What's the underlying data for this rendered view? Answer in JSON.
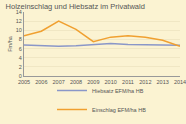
{
  "chart_data": {
    "type": "line",
    "title": "Holzeinschlag und Hiebsatz im Privatwald",
    "y_label": "Fm/ha",
    "categories": [
      "2005",
      "2006",
      "2007",
      "2008",
      "2009",
      "2010",
      "2011",
      "2012",
      "2013",
      "2014"
    ],
    "series": [
      {
        "name": "Hiebsatz EFM/ha HB",
        "color": "#8a97c8",
        "values": [
          6.8,
          6.6,
          6.5,
          6.6,
          6.9,
          7.1,
          6.9,
          6.9,
          6.8,
          6.7
        ]
      },
      {
        "name": "Einschlag EFM/ha HB",
        "color": "#f0a030",
        "values": [
          8.8,
          9.8,
          12.0,
          10.2,
          7.5,
          8.5,
          8.8,
          8.5,
          7.8,
          6.5
        ]
      }
    ],
    "ylim": [
      0,
      14
    ],
    "yticks": [
      0,
      2,
      4,
      6,
      8,
      10,
      12,
      14
    ],
    "grid": true,
    "legend": "bottom"
  }
}
